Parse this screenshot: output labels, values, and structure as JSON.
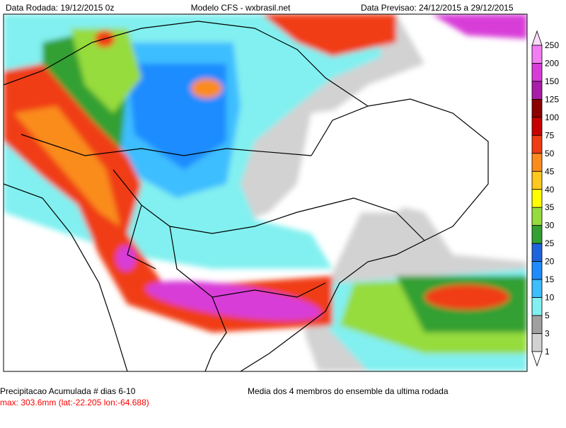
{
  "header": {
    "left": "Data Rodada: 19/12/2015 0z",
    "center": "Modelo CFS - wxbrasil.net",
    "right": "Data Previsao: 24/12/2015 a 29/12/2015"
  },
  "colorbar": {
    "levels": [
      250,
      200,
      150,
      125,
      100,
      75,
      50,
      45,
      40,
      35,
      30,
      25,
      20,
      15,
      10,
      5,
      3,
      1
    ],
    "colors": [
      "#fcdcfc",
      "#f37df3",
      "#d83cd8",
      "#a81ea8",
      "#8b0000",
      "#c80000",
      "#f03c14",
      "#fa8c1e",
      "#ffc81e",
      "#ffff00",
      "#96dc3c",
      "#32a032",
      "#1e64dc",
      "#1e8cff",
      "#3cbeff",
      "#82f0f0",
      "#a0a0a0",
      "#d2d2d2",
      "#ffffff"
    ]
  },
  "footer": {
    "title": "Precipitacao Acumulada # dias 6-10",
    "max": "max: 303.6mm (lat:-22.205 lon:-64.688)",
    "note": "Media dos 4 membros do ensemble da ultima rodada"
  }
}
